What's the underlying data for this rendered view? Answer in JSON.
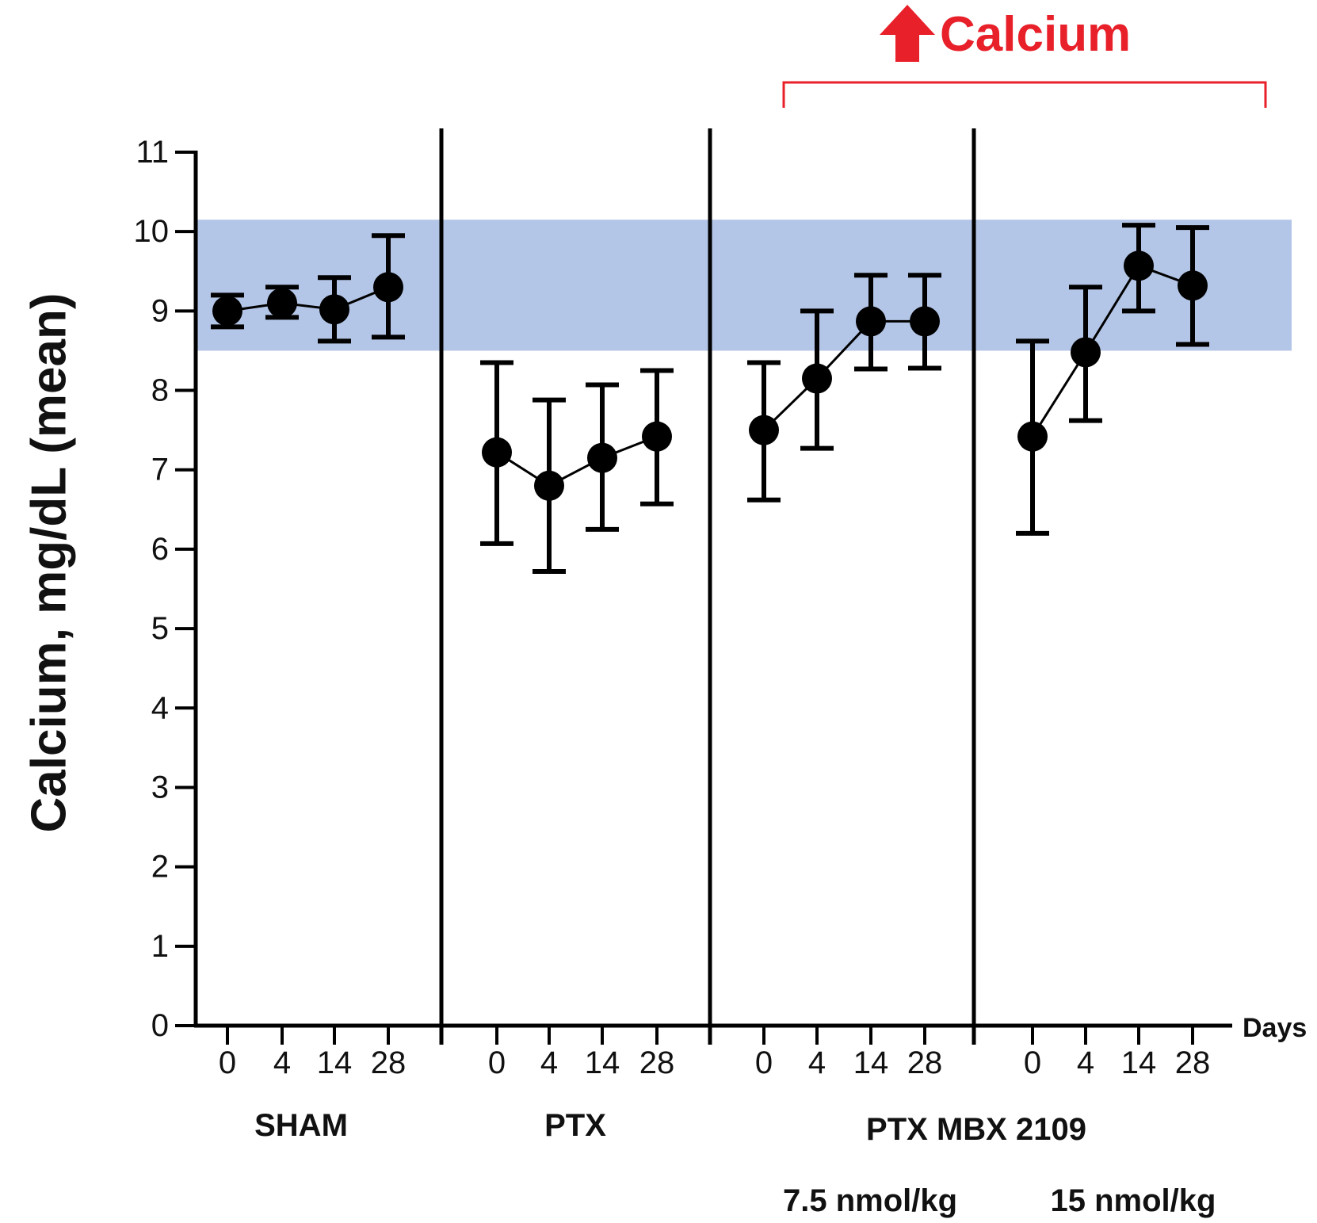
{
  "chart_data": {
    "type": "scatter",
    "ylabel": "Calcium, mg/dL (mean)",
    "xlabel": "Days",
    "ylim": [
      0,
      11
    ],
    "yticks": [
      0,
      1,
      2,
      3,
      4,
      5,
      6,
      7,
      8,
      9,
      10,
      11
    ],
    "reference_band": {
      "low": 8.5,
      "high": 10.15,
      "color": "#b4c6e7"
    },
    "annotation": {
      "text": "Calcium",
      "direction": "up",
      "color": "#e8202a"
    },
    "colors": {
      "marker": "#000000",
      "axis": "#000000"
    },
    "dose_labels": [
      "7.5 nmol/kg",
      "15 nmol/kg"
    ],
    "groups": [
      {
        "name": "SHAM",
        "x": [
          0,
          4,
          14,
          28
        ],
        "y": [
          9.0,
          9.1,
          9.02,
          9.3
        ],
        "err_low": [
          8.8,
          8.92,
          8.62,
          8.67
        ],
        "err_high": [
          9.2,
          9.3,
          9.42,
          9.95
        ]
      },
      {
        "name": "PTX",
        "x": [
          0,
          4,
          14,
          28
        ],
        "y": [
          7.22,
          6.8,
          7.15,
          7.42
        ],
        "err_low": [
          6.07,
          5.72,
          6.25,
          6.57
        ],
        "err_high": [
          8.35,
          7.88,
          8.07,
          8.25
        ]
      },
      {
        "name": "PTX MBX 2109 7.5 nmol/kg",
        "x": [
          0,
          4,
          14,
          28
        ],
        "y": [
          7.5,
          8.15,
          8.87,
          8.87
        ],
        "err_low": [
          6.62,
          7.27,
          8.27,
          8.28
        ],
        "err_high": [
          8.35,
          9.0,
          9.45,
          9.45
        ]
      },
      {
        "name": "PTX MBX 2109 15 nmol/kg",
        "x": [
          0,
          4,
          14,
          28
        ],
        "y": [
          7.42,
          8.48,
          9.57,
          9.32
        ],
        "err_low": [
          6.2,
          7.62,
          9.0,
          8.58
        ],
        "err_high": [
          8.62,
          9.3,
          10.08,
          10.05
        ]
      }
    ],
    "group_labels": [
      "SHAM",
      "PTX",
      "PTX MBX 2109"
    ]
  }
}
